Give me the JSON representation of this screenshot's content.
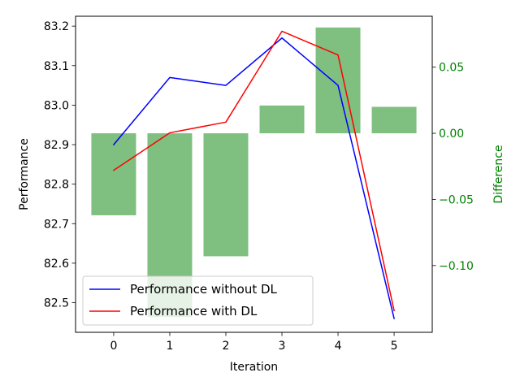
{
  "chart_data": {
    "type": "line",
    "xlabel": "Iteration",
    "ylabel": "Performance",
    "ylabel_right": "Difference",
    "x": [
      0,
      1,
      2,
      3,
      4,
      5
    ],
    "xlim": [
      -0.68,
      5.68
    ],
    "ylim": [
      82.425,
      83.225
    ],
    "ylim_right": [
      -0.1505,
      0.0885
    ],
    "xticks": [
      "0",
      "1",
      "2",
      "3",
      "4",
      "5"
    ],
    "yticks": [
      "82.5",
      "82.6",
      "82.7",
      "82.8",
      "82.9",
      "83.0",
      "83.1",
      "83.2"
    ],
    "yticks_right": [
      "−0.10",
      "−0.05",
      "0.00",
      "0.05"
    ],
    "series": [
      {
        "name": "Performance without DL",
        "color": "#0000ff",
        "values": [
          82.9,
          83.07,
          83.05,
          83.17,
          83.05,
          82.46
        ]
      },
      {
        "name": "Performance with DL",
        "color": "#ff0000",
        "values": [
          82.835,
          82.93,
          82.957,
          83.187,
          83.127,
          82.48
        ]
      }
    ],
    "bars": {
      "axis": "right",
      "color": "#008000",
      "opacity": 0.5,
      "values": [
        -0.062,
        -0.139,
        -0.093,
        0.021,
        0.08,
        0.02
      ]
    },
    "right_axis_color": "#008000",
    "legend_position": "lower-left",
    "grid": false
  }
}
